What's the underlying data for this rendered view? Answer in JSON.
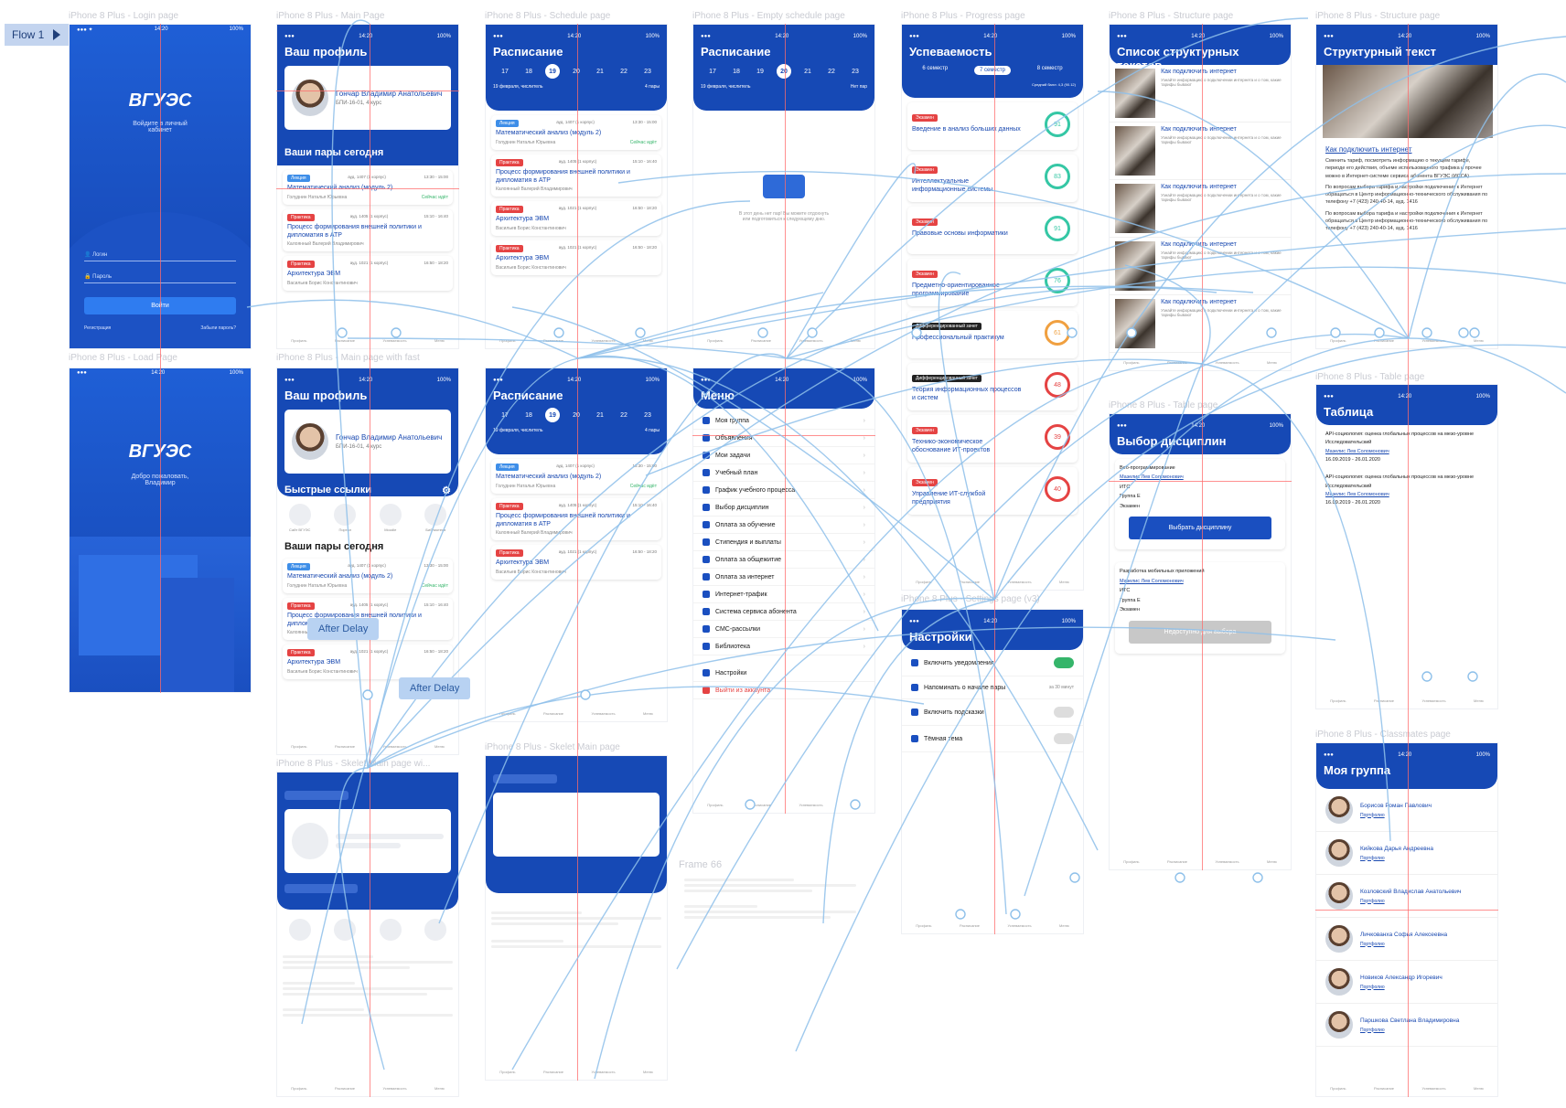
{
  "flow": {
    "label": "Flow 1"
  },
  "frames": {
    "login": {
      "label": "iPhone 8 Plus - Login page",
      "time": "14:20",
      "battery": "100%",
      "logo": "ВГУЭС",
      "welcome": "Войдите в личный кабинет",
      "login_ph": "Логин",
      "password_ph": "Пароль",
      "submit": "Войти",
      "register": "Регистрация",
      "forgot": "Забыли пароль?"
    },
    "load": {
      "label": "iPhone 8 Plus - Load Page",
      "logo": "ВГУЭС",
      "greeting": "Добро пожаловать, Владимир"
    },
    "main": {
      "label": "iPhone 8 Plus - Main Page",
      "title": "Ваш профиль",
      "name": "Гончар Владимир Анатольевич",
      "group": "БПИ-16-01, 4 курс",
      "today": "Ваши пары сегодня",
      "lessons": [
        {
          "tag": "Лекция",
          "kind": "lec",
          "title": "Математический анализ (модуль 2)",
          "room": "ауд. 1407 (1 корпус)",
          "time": "13:30 - 15:00",
          "teacher": "Голуднин Наталья Юрьевна",
          "now": "Сейчас идёт"
        },
        {
          "tag": "Практика",
          "kind": "pr",
          "title": "Процесс формирования внешней политики и дипломатия в АТР",
          "room": "ауд. 1405 (1 корпус)",
          "time": "15:10 - 16:40",
          "teacher": "Калоянный Валерий Владимирович",
          "now": ""
        },
        {
          "tag": "Практика",
          "kind": "pr",
          "title": "Архитектура ЭВМ",
          "room": "ауд. 1021 (1 корпус)",
          "time": "16:50 - 18:20",
          "teacher": "Васильев Борис Константинович",
          "now": ""
        }
      ]
    },
    "main_fast": {
      "label": "iPhone 8 Plus - Main page with fast",
      "quick": "Быстрые ссылки",
      "links": [
        "Сайт ВГУЭС",
        "Портал",
        "Moodle",
        "Библиотека"
      ]
    },
    "skel_main": {
      "label": "iPhone 8 Plus - Skelet Main page wi..."
    },
    "schedule": {
      "label": "iPhone 8 Plus - Schedule page",
      "title": "Расписание",
      "days": [
        "17",
        "18",
        "19",
        "20",
        "21",
        "22",
        "23"
      ],
      "weekdays": [
        "ПН",
        "ВТ",
        "СР",
        "ЧТ",
        "ПТ",
        "СБ",
        "ВС"
      ],
      "date": "19 февраля, числитель",
      "count": "4 пары"
    },
    "skel2": {
      "label": "iPhone 8 Plus - Skelet Main page"
    },
    "empty": {
      "label": "iPhone 8 Plus - Empty schedule page",
      "title": "Расписание",
      "empty_text": "В этот день нет пар! Вы можете отдохнуть или подготовиться к следующему дню.",
      "count": "Нет пар"
    },
    "menu": {
      "label": "Меню",
      "title": "Меню",
      "items": [
        "Моя группа",
        "Объявления",
        "Мои задачи",
        "Учебный план",
        "График учебного процесса",
        "Выбор дисциплин",
        "Оплата за обучение",
        "Стипендия и выплаты",
        "Оплата за общежитие",
        "Оплата за интернет",
        "Интернет-трафик",
        "Система сервиса абонента",
        "СМС-рассылки",
        "Библиотека"
      ],
      "settings": "Настройки",
      "logout": "Выйти из аккаунта"
    },
    "frame66": {
      "label": "Frame 66"
    },
    "progress": {
      "label": "iPhone 8 Plus - Progress page",
      "title": "Успеваемость",
      "sems": [
        "6 семестр",
        "7 семестр",
        "8 семестр"
      ],
      "avg": "Средний балл: 4,3 (90.12)",
      "subjects": [
        {
          "tag": "Экзамен",
          "title": "Введение в анализ больших данных",
          "score": "91"
        },
        {
          "tag": "Экзамен",
          "title": "Интеллектуальные информационные системы",
          "score": "83"
        },
        {
          "tag": "Экзамен",
          "title": "Правовые основы информатики",
          "score": "91"
        },
        {
          "tag": "Экзамен",
          "title": "Предметно-ориентированное программирование",
          "score": "76"
        },
        {
          "tag": "Дифференцированный зачет",
          "title": "Профессиональный практикум",
          "score": "61"
        },
        {
          "tag": "Дифференцированный зачет",
          "title": "Теория информационных процессов и систем",
          "score": "48"
        },
        {
          "tag": "Экзамен",
          "title": "Технико-экономическое обоснование ИТ-проектов",
          "score": "39"
        },
        {
          "tag": "Экзамен",
          "title": "Управление ИТ-службой предприятия",
          "score": "40"
        }
      ]
    },
    "settings": {
      "label": "iPhone 8 Plus - Settings page (v3)",
      "title": "Настройки",
      "rows": [
        "Включить уведомления",
        "Напоминать о начале пары",
        "Включить подсказки",
        "Тёмная тема"
      ],
      "remind": "за 30 минут"
    },
    "struct_list": {
      "label": "iPhone 8 Plus - Structure page",
      "title": "Список структурных текстов",
      "item": "Как подключить интернет",
      "desc": "Узнайте информацию о подключении интернета и о том, какие тарифы бывают"
    },
    "struct": {
      "label": "iPhone 8 Plus - Structure page",
      "title": "Структурный текст",
      "heading": "Как подключить интернет",
      "p1": "Сменить тариф, посмотреть информацию о текущем тарифе, периоде его действия, объеме использованного трафика и прочее можно в Интернет-системе сервиса абонента ВГУЭС (ИССА)",
      "p2": "По вопросам выбора тарифа и настройки подключения к Интернет обращаться в Центр информационно-технического обслуживания по телефону +7 (423) 240-40-14, ауд. 1416"
    },
    "choice": {
      "label": "iPhone 8 Plus - Table page",
      "title": "Выбор дисциплин",
      "d1": "Веб-программирование",
      "teacher": "Мазелис Лев Соломонович",
      "dept": "ИТС",
      "block": "Группа Е",
      "exam": "Экзамен",
      "btn1": "Выбрать дисциплину",
      "d2": "Разработка мобильных приложений",
      "btn2": "Недоступно для выбора"
    },
    "table": {
      "label": "iPhone 8 Plus - Table page",
      "title": "Таблица",
      "project": "API-социология: оценка глобальных процессов на мезо-уровне",
      "type": "Исследовательский",
      "head": "Мазелис Лев Соломонович",
      "dates": "16.09.2019 - 26.01.2020"
    },
    "group": {
      "label": "iPhone 8 Plus - Classmates page",
      "title": "Моя группа",
      "link": "Портфолио",
      "students": [
        "Борисов Роман Павлович",
        "Кийкова Дарья Андреевна",
        "Козловский Владислав Анатольевич",
        "Личкованха Софья Алексеевна",
        "Новиков Александр Игоревич",
        "Паршкова Светлана Владимировна"
      ]
    },
    "tabs": [
      "Профиль",
      "Расписание",
      "Успеваемость",
      "Меню"
    ]
  },
  "delays": [
    "After Delay",
    "After Delay"
  ],
  "colors": {
    "brand": "#1649b5",
    "wire": "#8ec0ea",
    "guide": "#ff6b6b"
  }
}
